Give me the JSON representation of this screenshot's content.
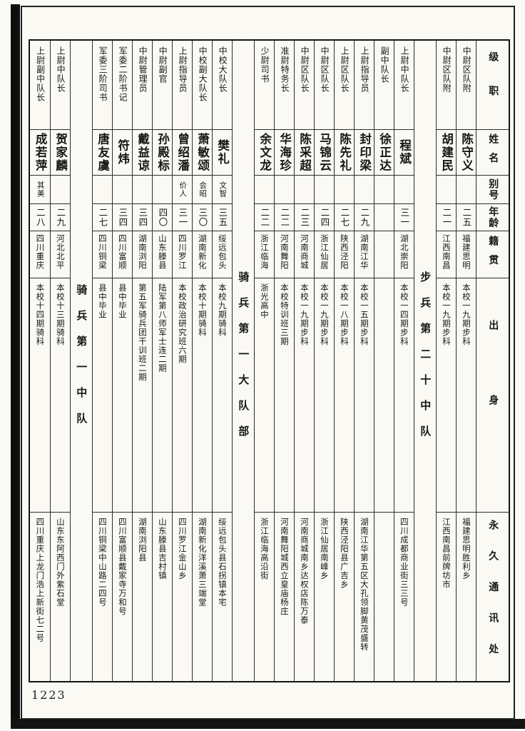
{
  "page": {
    "number": "1223"
  },
  "table": {
    "headers": [
      "级职",
      "姓名",
      "别号",
      "年龄",
      "籍贯",
      "出身",
      "永久通讯处"
    ],
    "columns": [
      {
        "type": "person",
        "rank": "中尉区队附",
        "name": "陈守义",
        "alias": "",
        "age": "二五",
        "native": "福建思明",
        "background": "本校一九期步科",
        "address": "福建思明胜利乡"
      },
      {
        "type": "person",
        "rank": "中尉区队附",
        "name": "胡建民",
        "alias": "",
        "age": "二一",
        "native": "江西南昌",
        "background": "本校一九期步科",
        "address": "江西南昌前牌坊市"
      },
      {
        "type": "section",
        "title": "步兵第二十中队"
      },
      {
        "type": "person",
        "rank": "上尉中队长",
        "name": "程斌",
        "alias": "",
        "age": "三一",
        "native": "湖北崇阳",
        "background": "本校一四期步科",
        "address": "四川成都商业街三三号"
      },
      {
        "type": "person",
        "rank": "副中队长",
        "name": "徐正达",
        "alias": "",
        "age": "",
        "native": "",
        "background": "",
        "address": ""
      },
      {
        "type": "person",
        "rank": "上尉指导员",
        "name": "封印梁",
        "alias": "",
        "age": "二九",
        "native": "湖南江华",
        "background": "本校一五期步科",
        "address": "湖南江华第五区大孔领脚黄茂盛转"
      },
      {
        "type": "person",
        "rank": "上尉区队长",
        "name": "陈先礼",
        "alias": "",
        "age": "二七",
        "native": "陕西泾阳",
        "background": "本校一八期步科",
        "address": "陕西泾阳县广吉乡"
      },
      {
        "type": "person",
        "rank": "中尉区队长",
        "name": "马锦云",
        "alias": "",
        "age": "二四",
        "native": "浙江仙居",
        "background": "本校一九期步科",
        "address": "浙江仙居南峰乡"
      },
      {
        "type": "person",
        "rank": "中尉区队长",
        "name": "陈采超",
        "alias": "",
        "age": "二三",
        "native": "河南商城",
        "background": "本校一九期步科",
        "address": "河南商城南乡达权店陈万泰"
      },
      {
        "type": "person",
        "rank": "准尉特务长",
        "name": "华海珍",
        "alias": "",
        "age": "二二",
        "native": "河南舞阳",
        "background": "本校特训班三期",
        "address": "河南舞阳城西立皇庙杨庄"
      },
      {
        "type": "person",
        "rank": "少尉司书",
        "name": "余文龙",
        "alias": "",
        "age": "二二",
        "native": "浙江临海",
        "background": "浙光高中",
        "address": "浙江临海高沿街"
      },
      {
        "type": "section",
        "title": "骑兵第一大队部"
      },
      {
        "type": "person",
        "rank": "中校大队长",
        "name": "樊礼",
        "alias": "文智",
        "age": "三五",
        "native": "绥远包头",
        "background": "本校九期骑科",
        "address": "绥远包头县石拐镇本宅"
      },
      {
        "type": "person",
        "rank": "中校副大队长",
        "name": "萧敏颂",
        "alias": "会昭",
        "age": "三〇",
        "native": "湖南新化",
        "background": "本校十期骑科",
        "address": "湖南新化洋溪萧三端堂"
      },
      {
        "type": "person",
        "rank": "上尉指导员",
        "name": "曾绍潘",
        "alias": "价人",
        "age": "三一",
        "native": "四川罗江",
        "background": "本校政治研究班六期",
        "address": "四川罗江金山乡"
      },
      {
        "type": "person",
        "rank": "中尉副官",
        "name": "孙殿标",
        "alias": "",
        "age": "四〇",
        "native": "山东滕县",
        "background": "陆军第八师军士连二期",
        "address": "山东滕县吉村镇"
      },
      {
        "type": "person",
        "rank": "中尉管理员",
        "name": "戴益谅",
        "alias": "",
        "age": "三四",
        "native": "湖南浏阳",
        "background": "第五军骑兵团干训班二期",
        "address": "湖南浏阳县"
      },
      {
        "type": "person",
        "rank": "军委二阶书记",
        "name": "符炜",
        "alias": "",
        "age": "三四",
        "native": "四川富顺",
        "background": "县中毕业",
        "address": "四川富顺县戴家寺万和号"
      },
      {
        "type": "person",
        "rank": "军委三阶司书",
        "name": "唐友虞",
        "alias": "",
        "age": "二七",
        "native": "四川铜梁",
        "background": "县中毕业",
        "address": "四川铜梁中山路二四号"
      },
      {
        "type": "section",
        "title": "骑兵第一中队"
      },
      {
        "type": "person",
        "rank": "上尉中队长",
        "name": "贺家麟",
        "alias": "",
        "age": "二九",
        "native": "河北北平",
        "background": "本校十三期骑科",
        "address": "山东东阿西门外紫石堂"
      },
      {
        "type": "person",
        "rank": "上尉副中队长",
        "name": "成若萍",
        "alias": "其美",
        "age": "二八",
        "native": "四川重庆",
        "background": "本校十四期骑科",
        "address": "四川重庆上龙门浩上新街七二号"
      }
    ]
  }
}
